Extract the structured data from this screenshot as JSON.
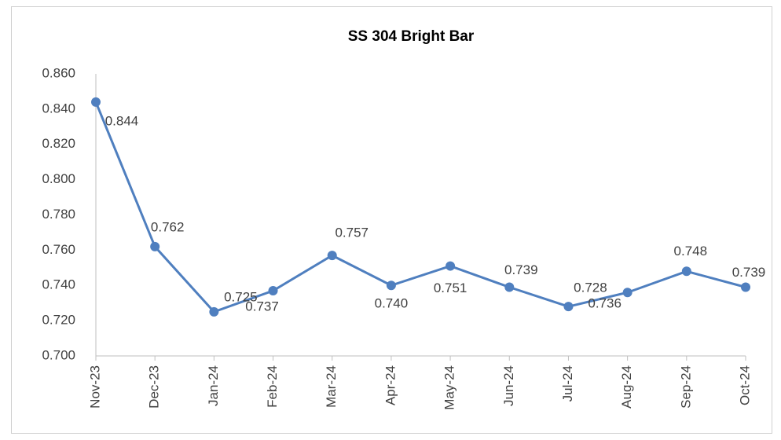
{
  "chart_data": {
    "type": "line",
    "title": "SS 304 Bright Bar",
    "categories": [
      "Nov-23",
      "Dec-23",
      "Jan-24",
      "Feb-24",
      "Mar-24",
      "Apr-24",
      "May-24",
      "Jun-24",
      "Jul-24",
      "Aug-24",
      "Sep-24",
      "Oct-24"
    ],
    "series": [
      {
        "name": "SS 304 Bright Bar",
        "color": "#4f7fbf",
        "values": [
          0.844,
          0.762,
          0.725,
          0.737,
          0.757,
          0.74,
          0.751,
          0.739,
          0.728,
          0.736,
          0.748,
          0.739
        ],
        "value_labels": [
          "0.844",
          "0.762",
          "0.725",
          "0.737",
          "0.757",
          "0.740",
          "0.751",
          "0.739",
          "0.728",
          "0.736",
          "0.748",
          "0.739"
        ]
      }
    ],
    "ylim": [
      0.7,
      0.86
    ],
    "yticks": [
      {
        "value": 0.7,
        "label": "0.700"
      },
      {
        "value": 0.72,
        "label": "0.720"
      },
      {
        "value": 0.74,
        "label": "0.740"
      },
      {
        "value": 0.76,
        "label": "0.760"
      },
      {
        "value": 0.78,
        "label": "0.780"
      },
      {
        "value": 0.8,
        "label": "0.800"
      },
      {
        "value": 0.82,
        "label": "0.820"
      },
      {
        "value": 0.84,
        "label": "0.840"
      },
      {
        "value": 0.86,
        "label": "0.860"
      }
    ],
    "grid": false
  }
}
